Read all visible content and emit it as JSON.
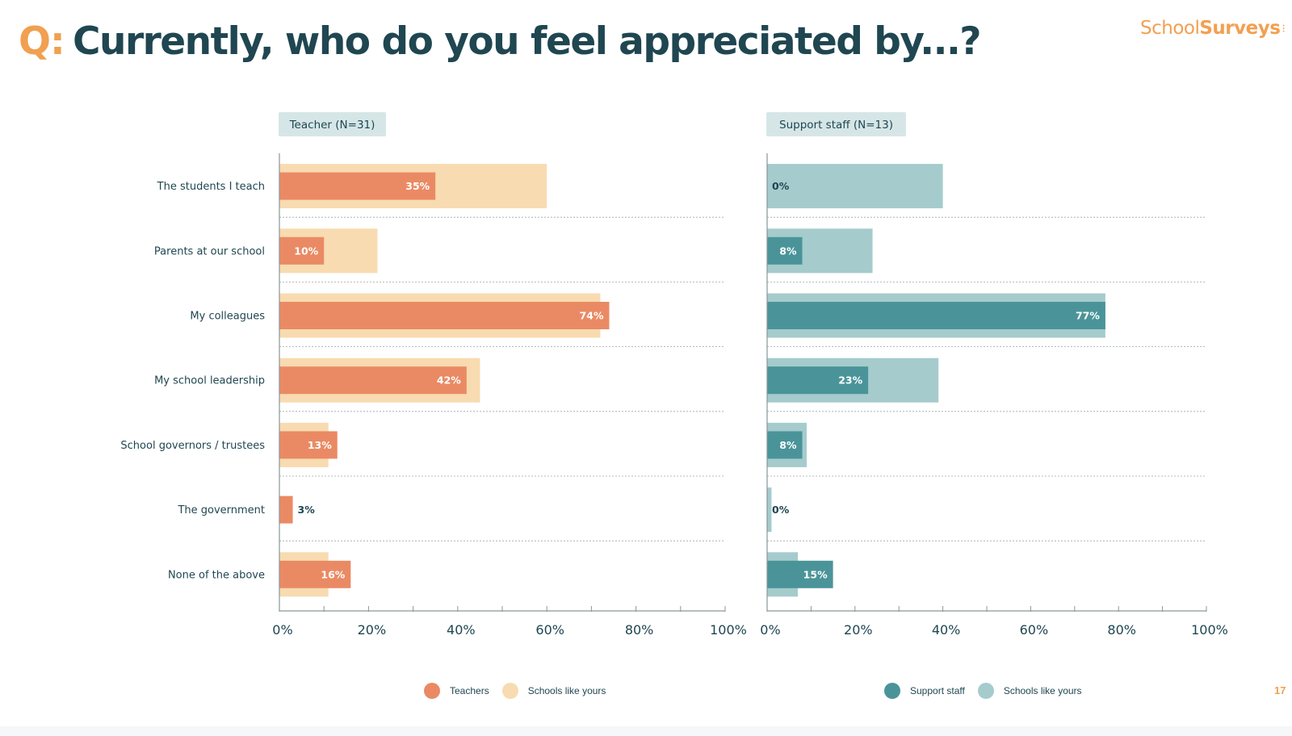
{
  "header": {
    "q_label": "Q:",
    "title": "Currently, who do you feel appreciated by...?"
  },
  "logo": {
    "part1": "School",
    "part2": "Surveys"
  },
  "page_number": "17",
  "colors": {
    "teacher_main": "#ea8a64",
    "teacher_bench": "#f8dbb0",
    "support_main": "#4a9499",
    "support_bench": "#a5cbcd",
    "panel_label_bg": "#d6e6e7",
    "text": "#1f4651",
    "accent": "#f0a050"
  },
  "chart_data": [
    {
      "type": "bar",
      "orientation": "horizontal",
      "panel_label": "Teacher (N=31)",
      "categories": [
        "The students I teach",
        "Parents at our school",
        "My colleagues",
        "My school leadership",
        "School governors / trustees",
        "The government",
        "None of the above"
      ],
      "series": [
        {
          "name": "Teachers",
          "values": [
            35,
            10,
            74,
            42,
            13,
            3,
            16
          ],
          "labels": [
            "35%",
            "10%",
            "74%",
            "42%",
            "13%",
            "3%",
            "16%"
          ]
        },
        {
          "name": "Schools like yours",
          "values": [
            60,
            22,
            72,
            45,
            11,
            0,
            11
          ]
        }
      ],
      "xlim": [
        0,
        100
      ],
      "xticks": [
        "0%",
        "20%",
        "40%",
        "60%",
        "80%",
        "100%"
      ],
      "legend_position": "bottom"
    },
    {
      "type": "bar",
      "orientation": "horizontal",
      "panel_label": "Support staff (N=13)",
      "categories": [
        "The students I teach",
        "Parents at our school",
        "My colleagues",
        "My school leadership",
        "School governors / trustees",
        "The government",
        "None of the above"
      ],
      "series": [
        {
          "name": "Support staff",
          "values": [
            0,
            8,
            77,
            23,
            8,
            0,
            15
          ],
          "labels": [
            "0%",
            "8%",
            "77%",
            "23%",
            "8%",
            "0%",
            "15%"
          ]
        },
        {
          "name": "Schools like yours",
          "values": [
            40,
            24,
            77,
            39,
            9,
            1,
            7
          ]
        }
      ],
      "xlim": [
        0,
        100
      ],
      "xticks": [
        "0%",
        "20%",
        "40%",
        "60%",
        "80%",
        "100%"
      ],
      "legend_position": "bottom"
    }
  ]
}
